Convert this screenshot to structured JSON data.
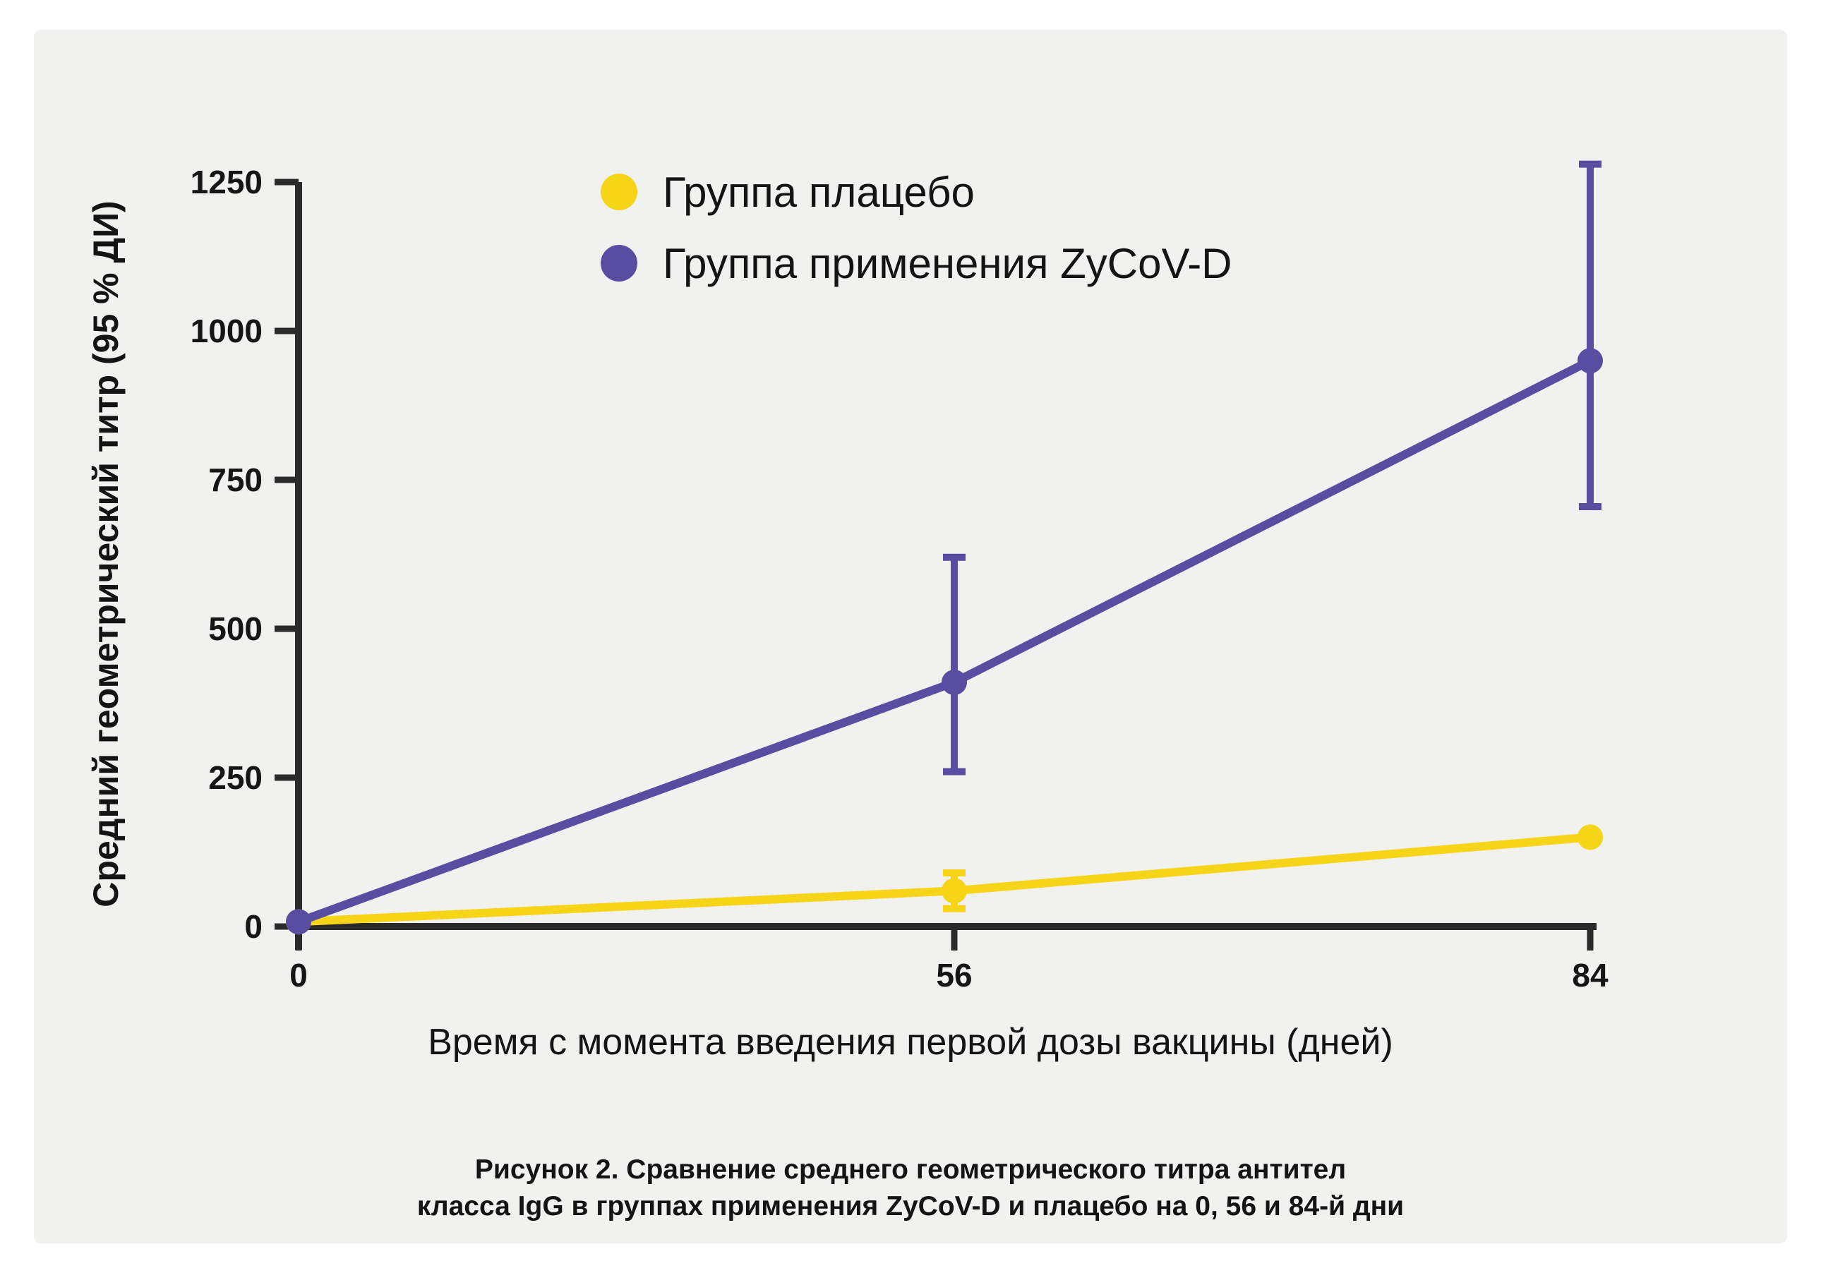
{
  "page": {
    "background": "#ffffff",
    "card_background": "#f1f1f0",
    "axis_color": "#2a2a2a",
    "text_color": "#141414"
  },
  "chart_data": {
    "type": "line",
    "x": [
      0,
      56,
      84
    ],
    "xticks": [
      "0",
      "56",
      "84"
    ],
    "yticks": [
      0,
      250,
      500,
      750,
      1000,
      1250
    ],
    "ylim": [
      0,
      1250
    ],
    "xlabel": "Время с момента введения первой дозы вакцины (дней)",
    "ylabel": "Средний геометрический титр (95 % ДИ)",
    "grid": false,
    "legend_position": "inside-top-center",
    "x_spacing": "equal",
    "error_bars": "95% CI",
    "series": [
      {
        "name": "Группа плацебо",
        "color": "#f6d417",
        "values": [
          8,
          60,
          150
        ],
        "ci_low": [
          null,
          30,
          null
        ],
        "ci_high": [
          null,
          90,
          null
        ]
      },
      {
        "name": "Группа применения ZyCoV-D",
        "color": "#584da1",
        "values": [
          8,
          410,
          950
        ],
        "ci_low": [
          null,
          260,
          705
        ],
        "ci_high": [
          null,
          620,
          1280
        ]
      }
    ]
  },
  "caption": {
    "line1": "Рисунок 2. Сравнение среднего геометрического титра антител",
    "line2": "класса IgG в группах применения ZyCoV-D и плацебо на 0, 56 и 84-й дни"
  }
}
